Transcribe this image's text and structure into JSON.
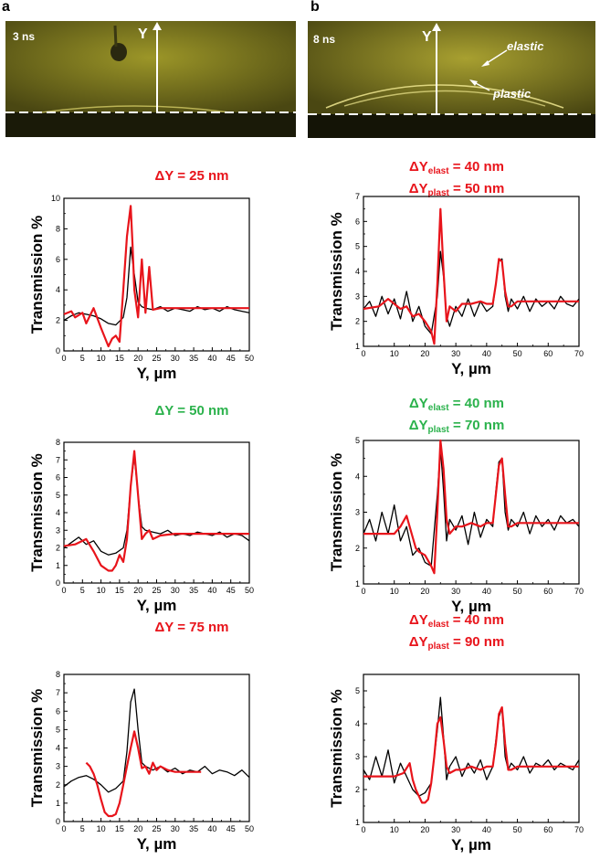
{
  "colors": {
    "model": "#e8141b",
    "measured": "#000000",
    "green_label": "#2bb24c",
    "image_tint": "#d8d020"
  },
  "panels": {
    "a": {
      "letter": "a",
      "time": "3 ns",
      "axis_label": "Y"
    },
    "b": {
      "letter": "b",
      "time": "8 ns",
      "axis_label": "Y",
      "elastic": "elastic",
      "plastic": "plastic"
    }
  },
  "labels": {
    "a1": {
      "text": "ΔY = 25 nm",
      "color": "red"
    },
    "a2": {
      "text": "ΔY = 50 nm",
      "color": "green"
    },
    "a3": {
      "text": "ΔY = 75 nm",
      "color": "red"
    },
    "b1": {
      "line1_main": "ΔY",
      "line1_sub": "elast",
      "line1_val": " =  40 nm",
      "line2_main": "ΔY",
      "line2_sub": "plast",
      "line2_val": " =  50 nm",
      "color": "red"
    },
    "b2": {
      "line1_main": "ΔY",
      "line1_sub": "elast",
      "line1_val": " =  40 nm",
      "line2_main": "ΔY",
      "line2_sub": "plast",
      "line2_val": " =  70 nm",
      "color": "green"
    },
    "b3": {
      "line1_main": "ΔY",
      "line1_sub": "elast",
      "line1_val": " =  40 nm",
      "line2_main": "ΔY",
      "line2_sub": "plast",
      "line2_val": " =  90 nm",
      "color": "red"
    }
  },
  "chart_data": [
    {
      "id": "a1",
      "type": "line",
      "xlabel": "Y, µm",
      "ylabel": "Transmission %",
      "xlim": [
        0,
        50
      ],
      "ylim": [
        0,
        10
      ],
      "xticks": [
        0,
        5,
        10,
        15,
        20,
        25,
        30,
        35,
        40,
        45,
        50
      ],
      "yticks": [
        0,
        2,
        4,
        6,
        8,
        10
      ],
      "series": [
        {
          "color": "black",
          "x": [
            0,
            2,
            4,
            6,
            8,
            10,
            12,
            14,
            16,
            17,
            18,
            19,
            20,
            21,
            22,
            24,
            26,
            28,
            30,
            32,
            34,
            36,
            38,
            40,
            42,
            44,
            46,
            48,
            50
          ],
          "y": [
            2.0,
            2.3,
            2.5,
            2.4,
            2.3,
            2.1,
            1.8,
            1.7,
            2.2,
            3.5,
            6.8,
            5.0,
            3.2,
            2.9,
            2.8,
            2.7,
            2.9,
            2.6,
            2.8,
            2.7,
            2.6,
            2.9,
            2.7,
            2.8,
            2.6,
            2.9,
            2.7,
            2.6,
            2.5
          ]
        },
        {
          "color": "red",
          "x": [
            0,
            2,
            3,
            5,
            6,
            8,
            10,
            12,
            13,
            14,
            15,
            16,
            17,
            18,
            18.5,
            19,
            20,
            21,
            22,
            23,
            24,
            26,
            30,
            35,
            40,
            45,
            50
          ],
          "y": [
            2.4,
            2.6,
            2.2,
            2.5,
            1.8,
            2.8,
            1.5,
            0.3,
            0.8,
            1.0,
            0.6,
            4.0,
            7.5,
            9.5,
            7.0,
            4.0,
            2.2,
            6.0,
            2.5,
            5.5,
            2.7,
            2.8,
            2.8,
            2.8,
            2.8,
            2.8,
            2.8
          ]
        }
      ]
    },
    {
      "id": "a2",
      "type": "line",
      "xlabel": "Y, µm",
      "ylabel": "Transmission %",
      "xlim": [
        0,
        50
      ],
      "ylim": [
        0,
        8
      ],
      "xticks": [
        0,
        5,
        10,
        15,
        20,
        25,
        30,
        35,
        40,
        45,
        50
      ],
      "yticks": [
        0,
        1,
        2,
        3,
        4,
        5,
        6,
        7,
        8
      ],
      "series": [
        {
          "color": "black",
          "x": [
            0,
            2,
            4,
            6,
            8,
            10,
            12,
            14,
            16,
            17,
            18,
            19,
            20,
            21,
            22,
            24,
            26,
            28,
            30,
            32,
            34,
            36,
            38,
            40,
            42,
            44,
            46,
            48,
            50
          ],
          "y": [
            2.0,
            2.3,
            2.6,
            2.2,
            2.4,
            1.8,
            1.6,
            1.7,
            2.0,
            3.0,
            5.5,
            7.2,
            5.0,
            3.2,
            3.0,
            2.9,
            2.8,
            3.0,
            2.7,
            2.8,
            2.7,
            2.9,
            2.8,
            2.7,
            2.9,
            2.6,
            2.8,
            2.7,
            2.4
          ]
        },
        {
          "color": "red",
          "x": [
            0,
            3,
            6,
            8,
            10,
            12,
            13,
            14,
            15,
            16,
            17,
            18,
            19,
            20,
            21,
            22,
            23,
            24,
            26,
            30,
            35,
            40,
            45,
            50
          ],
          "y": [
            2.1,
            2.2,
            2.5,
            1.8,
            1.0,
            0.7,
            0.7,
            1.0,
            1.6,
            1.2,
            2.5,
            5.5,
            7.5,
            5.0,
            2.5,
            2.8,
            3.0,
            2.5,
            2.7,
            2.8,
            2.8,
            2.8,
            2.8,
            2.8
          ]
        }
      ]
    },
    {
      "id": "a3",
      "type": "line",
      "xlabel": "Y, µm",
      "ylabel": "Transmission %",
      "xlim": [
        0,
        50
      ],
      "ylim": [
        0,
        8
      ],
      "xticks": [
        0,
        5,
        10,
        15,
        20,
        25,
        30,
        35,
        40,
        45,
        50
      ],
      "yticks": [
        0,
        1,
        2,
        3,
        4,
        5,
        6,
        7,
        8
      ],
      "series": [
        {
          "color": "black",
          "x": [
            0,
            2,
            4,
            6,
            8,
            10,
            12,
            14,
            16,
            17,
            18,
            19,
            20,
            21,
            22,
            24,
            26,
            28,
            30,
            32,
            34,
            36,
            38,
            40,
            42,
            44,
            46,
            48,
            50
          ],
          "y": [
            1.9,
            2.2,
            2.4,
            2.5,
            2.3,
            2.0,
            1.6,
            1.8,
            2.2,
            3.8,
            6.5,
            7.2,
            5.0,
            3.2,
            3.0,
            2.8,
            3.0,
            2.7,
            2.9,
            2.6,
            2.8,
            2.7,
            3.0,
            2.6,
            2.8,
            2.7,
            2.5,
            2.8,
            2.4
          ]
        },
        {
          "color": "red",
          "x": [
            6,
            7,
            8,
            9,
            10,
            11,
            12,
            13,
            14,
            15,
            16,
            17,
            18,
            19,
            20,
            21,
            22,
            23,
            24,
            25,
            26,
            28,
            30,
            33,
            37
          ],
          "y": [
            3.2,
            3.0,
            2.6,
            2.0,
            1.2,
            0.5,
            0.3,
            0.3,
            0.4,
            1.0,
            2.0,
            3.0,
            4.0,
            4.9,
            4.0,
            2.9,
            3.0,
            2.6,
            3.2,
            2.8,
            3.0,
            2.8,
            2.7,
            2.7,
            2.7
          ]
        }
      ]
    },
    {
      "id": "b1",
      "type": "line",
      "xlabel": "Y, µm",
      "ylabel": "Transmission %",
      "xlim": [
        0,
        70
      ],
      "ylim": [
        1,
        7
      ],
      "xticks": [
        0,
        10,
        20,
        30,
        40,
        50,
        60,
        70
      ],
      "yticks": [
        1,
        2,
        3,
        4,
        5,
        6,
        7
      ],
      "series": [
        {
          "color": "black",
          "x": [
            0,
            2,
            4,
            6,
            8,
            10,
            12,
            14,
            16,
            18,
            20,
            22,
            24,
            25,
            26,
            27,
            28,
            30,
            32,
            34,
            36,
            38,
            40,
            42,
            43,
            44,
            45,
            46,
            47,
            48,
            50,
            52,
            54,
            56,
            58,
            60,
            62,
            64,
            66,
            68,
            70
          ],
          "y": [
            2.5,
            2.8,
            2.2,
            3.0,
            2.3,
            2.9,
            2.1,
            3.2,
            2.0,
            2.6,
            1.8,
            1.5,
            3.0,
            4.8,
            3.8,
            2.2,
            1.8,
            2.6,
            2.2,
            2.9,
            2.2,
            2.8,
            2.4,
            2.6,
            3.5,
            4.4,
            4.5,
            3.0,
            2.4,
            2.9,
            2.5,
            3.0,
            2.4,
            2.9,
            2.6,
            2.8,
            2.5,
            3.0,
            2.7,
            2.6,
            2.9
          ]
        },
        {
          "color": "red",
          "x": [
            0,
            5,
            8,
            12,
            14,
            16,
            18,
            20,
            22,
            23,
            24,
            25,
            26,
            27,
            28,
            30,
            32,
            35,
            38,
            40,
            42,
            43,
            44,
            45,
            46,
            47,
            48,
            50,
            55,
            60,
            65,
            70
          ],
          "y": [
            2.5,
            2.6,
            2.9,
            2.5,
            2.6,
            2.2,
            2.3,
            2.0,
            1.6,
            1.1,
            3.5,
            6.5,
            4.0,
            2.0,
            2.6,
            2.4,
            2.7,
            2.7,
            2.8,
            2.7,
            2.7,
            3.5,
            4.5,
            4.4,
            3.2,
            2.6,
            2.6,
            2.8,
            2.8,
            2.8,
            2.8,
            2.8
          ]
        }
      ]
    },
    {
      "id": "b2",
      "type": "line",
      "xlabel": "Y, µm",
      "ylabel": "Transmission %",
      "xlim": [
        0,
        70
      ],
      "ylim": [
        1,
        5
      ],
      "xticks": [
        0,
        10,
        20,
        30,
        40,
        50,
        60,
        70
      ],
      "yticks": [
        1,
        2,
        3,
        4,
        5
      ],
      "series": [
        {
          "color": "black",
          "x": [
            0,
            2,
            4,
            6,
            8,
            10,
            12,
            14,
            16,
            18,
            20,
            22,
            24,
            25,
            26,
            27,
            28,
            30,
            32,
            34,
            36,
            38,
            40,
            42,
            43,
            44,
            45,
            46,
            47,
            48,
            50,
            52,
            54,
            56,
            58,
            60,
            62,
            64,
            66,
            68,
            70
          ],
          "y": [
            2.4,
            2.8,
            2.2,
            3.0,
            2.4,
            3.2,
            2.2,
            2.6,
            1.8,
            2.0,
            1.6,
            1.5,
            3.5,
            4.8,
            3.6,
            2.2,
            2.8,
            2.5,
            2.9,
            2.1,
            3.0,
            2.3,
            2.8,
            2.6,
            3.6,
            4.4,
            4.5,
            3.0,
            2.5,
            2.8,
            2.6,
            3.0,
            2.4,
            2.9,
            2.6,
            2.8,
            2.5,
            2.9,
            2.7,
            2.8,
            2.6
          ]
        },
        {
          "color": "red",
          "x": [
            0,
            5,
            10,
            12,
            14,
            16,
            17,
            18,
            20,
            22,
            23,
            24,
            25,
            26,
            27,
            28,
            30,
            32,
            35,
            38,
            40,
            42,
            43,
            44,
            45,
            46,
            47,
            48,
            50,
            55,
            60,
            65,
            70
          ],
          "y": [
            2.4,
            2.4,
            2.4,
            2.6,
            2.9,
            2.3,
            2.0,
            1.9,
            1.8,
            1.5,
            1.3,
            3.0,
            5.0,
            4.2,
            2.8,
            2.4,
            2.6,
            2.6,
            2.7,
            2.6,
            2.7,
            2.7,
            3.5,
            4.3,
            4.5,
            3.5,
            2.6,
            2.6,
            2.7,
            2.7,
            2.7,
            2.7,
            2.7
          ]
        }
      ]
    },
    {
      "id": "b3",
      "type": "line",
      "xlabel": "Y, µm",
      "ylabel": "Transmission %",
      "xlim": [
        0,
        70
      ],
      "ylim": [
        1,
        5.5
      ],
      "xticks": [
        0,
        10,
        20,
        30,
        40,
        50,
        60,
        70
      ],
      "yticks": [
        1,
        2,
        3,
        4,
        5
      ],
      "series": [
        {
          "color": "black",
          "x": [
            0,
            2,
            4,
            6,
            8,
            10,
            12,
            14,
            16,
            18,
            20,
            22,
            24,
            25,
            26,
            27,
            28,
            30,
            32,
            34,
            36,
            38,
            40,
            42,
            43,
            44,
            45,
            46,
            47,
            48,
            50,
            52,
            54,
            56,
            58,
            60,
            62,
            64,
            66,
            68,
            70
          ],
          "y": [
            2.6,
            2.3,
            3.0,
            2.4,
            3.2,
            2.2,
            2.8,
            2.4,
            2.0,
            1.8,
            1.9,
            2.2,
            3.8,
            4.8,
            3.6,
            2.3,
            2.7,
            3.0,
            2.4,
            2.8,
            2.5,
            2.9,
            2.3,
            2.7,
            3.5,
            4.2,
            4.5,
            3.0,
            2.6,
            2.8,
            2.6,
            3.0,
            2.5,
            2.8,
            2.7,
            2.9,
            2.6,
            2.8,
            2.7,
            2.6,
            2.9
          ]
        },
        {
          "color": "red",
          "x": [
            0,
            5,
            10,
            13,
            15,
            16,
            17,
            18,
            19,
            20,
            21,
            22,
            23,
            24,
            25,
            26,
            27,
            28,
            30,
            32,
            35,
            38,
            40,
            42,
            43,
            44,
            45,
            46,
            47,
            48,
            50,
            55,
            60,
            65,
            70
          ],
          "y": [
            2.4,
            2.4,
            2.4,
            2.5,
            2.8,
            2.3,
            2.0,
            1.8,
            1.6,
            1.6,
            1.7,
            2.2,
            3.0,
            4.0,
            4.2,
            3.5,
            2.7,
            2.5,
            2.6,
            2.6,
            2.7,
            2.6,
            2.7,
            2.7,
            3.4,
            4.3,
            4.5,
            3.4,
            2.6,
            2.6,
            2.7,
            2.7,
            2.7,
            2.7,
            2.7
          ]
        }
      ]
    }
  ]
}
